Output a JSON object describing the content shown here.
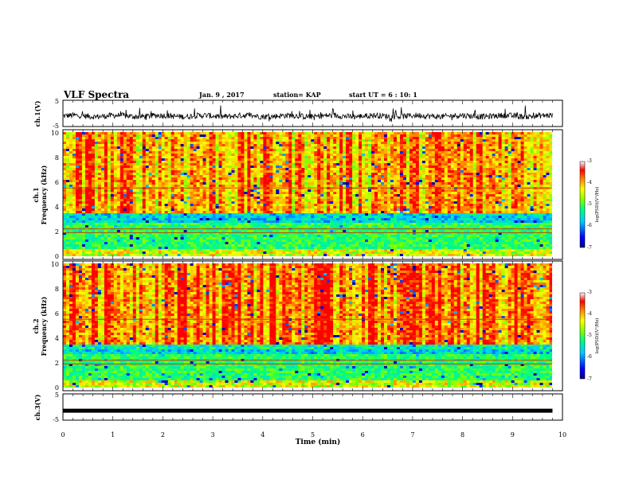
{
  "header": {
    "title": "VLF Spectra",
    "date": "Jan. 9 , 2017",
    "station": "station= KAP",
    "start_time": "start UT =  6 : 10: 1"
  },
  "colors": {
    "background": "#ffffff",
    "ink": "#000000",
    "spectrum_low": "#00008f",
    "spectrum_high": "#ff0000"
  },
  "chart_data": [
    {
      "type": "line",
      "ylabel": "ch.1(V)",
      "ylim": [
        -5,
        5
      ],
      "yticks": [
        "5",
        "-5"
      ],
      "xlim": [
        0,
        10
      ],
      "description_values": "noisy waveform around -1 V, amplitude roughly ±1.5 V"
    },
    {
      "type": "heatmap",
      "ylabel_top": "ch.1",
      "ylabel_bottom": "Frequency (kHz)",
      "ylim": [
        0,
        10
      ],
      "yticks": [
        "0",
        "2",
        "4",
        "6",
        "8",
        "10"
      ],
      "xlim": [
        0,
        10
      ],
      "colorbar": {
        "label": "log(PSD)(V²/Hz)",
        "range": [
          -7,
          -3
        ],
        "ticks": [
          "-3",
          "-4",
          "-5",
          "-6",
          "-7"
        ]
      }
    },
    {
      "type": "heatmap",
      "ylabel_top": "ch.2",
      "ylabel_bottom": "Frequency (kHz)",
      "ylim": [
        0,
        10
      ],
      "yticks": [
        "0",
        "2",
        "4",
        "6",
        "8",
        "10"
      ],
      "xlim": [
        0,
        10
      ],
      "colorbar": {
        "label": "log(PSD)(V²/Hz)",
        "range": [
          -7,
          -3
        ],
        "ticks": [
          "-3",
          "-4",
          "-5",
          "-6",
          "-7"
        ]
      }
    },
    {
      "type": "line",
      "ylabel": "ch.3(V)",
      "ylim": [
        -5,
        5
      ],
      "yticks": [
        "5",
        "-5"
      ],
      "xlim": [
        0,
        10
      ],
      "xlabel": "Time (min)",
      "xticks": [
        "0",
        "1",
        "2",
        "3",
        "4",
        "5",
        "6",
        "7",
        "8",
        "9",
        "10"
      ],
      "values": [
        [
          0,
          -1.4
        ],
        [
          9.8,
          -1.4
        ]
      ]
    }
  ]
}
